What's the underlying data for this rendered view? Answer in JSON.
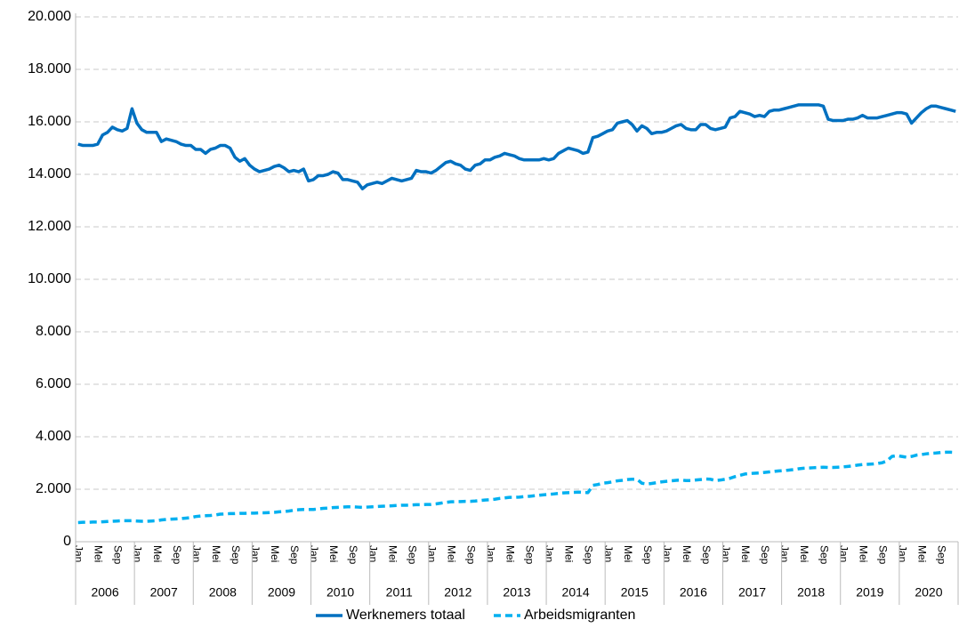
{
  "chart_data": {
    "type": "line",
    "categories": [
      "Jan",
      null,
      null,
      null,
      "Mei",
      null,
      null,
      null,
      "Sep",
      null,
      null,
      null,
      "Jan",
      null,
      null,
      null,
      "Mei",
      null,
      null,
      null,
      "Sep",
      null,
      null,
      null,
      "Jan",
      null,
      null,
      null,
      "Mei",
      null,
      null,
      null,
      "Sep",
      null,
      null,
      null,
      "Jan",
      null,
      null,
      null,
      "Mei",
      null,
      null,
      null,
      "Sep",
      null,
      null,
      null,
      "Jan",
      null,
      null,
      null,
      "Mei",
      null,
      null,
      null,
      "Sep",
      null,
      null,
      null,
      "Jan",
      null,
      null,
      null,
      "Mei",
      null,
      null,
      null,
      "Sep",
      null,
      null,
      null,
      "Jan",
      null,
      null,
      null,
      "Mei",
      null,
      null,
      null,
      "Sep",
      null,
      null,
      null,
      "Jan",
      null,
      null,
      null,
      "Mei",
      null,
      null,
      null,
      "Sep",
      null,
      null,
      null,
      "Jan",
      null,
      null,
      null,
      "Mei",
      null,
      null,
      null,
      "Sep",
      null,
      null,
      null,
      "Jan",
      null,
      null,
      null,
      "Mei",
      null,
      null,
      null,
      "Sep",
      null,
      null,
      null,
      "Jan",
      null,
      null,
      null,
      "Mei",
      null,
      null,
      null,
      "Sep",
      null,
      null,
      null,
      "Jan",
      null,
      null,
      null,
      "Mei",
      null,
      null,
      null,
      "Sep",
      null,
      null,
      null,
      "Jan",
      null,
      null,
      null,
      "Mei",
      null,
      null,
      null,
      "Sep",
      null,
      null,
      null,
      "Jan",
      null,
      null,
      null,
      "Mei",
      null,
      null,
      null,
      "Sep",
      null,
      null,
      null,
      "Jan",
      null,
      null,
      null,
      "Mei",
      null,
      null,
      null,
      "Sep",
      null,
      null,
      null
    ],
    "years": [
      "2006",
      "2007",
      "2008",
      "2009",
      "2010",
      "2011",
      "2012",
      "2013",
      "2014",
      "2015",
      "2016",
      "2017",
      "2018",
      "2019",
      "2020"
    ],
    "series": [
      {
        "name": "Werknemers totaal",
        "color": "#0070c0",
        "dash": false,
        "values": [
          15150,
          15100,
          15100,
          15100,
          15150,
          15500,
          15600,
          15800,
          15700,
          15650,
          15750,
          16500,
          15950,
          15700,
          15600,
          15600,
          15600,
          15250,
          15350,
          15300,
          15250,
          15150,
          15100,
          15100,
          14950,
          14950,
          14800,
          14950,
          15000,
          15100,
          15100,
          15000,
          14650,
          14500,
          14600,
          14350,
          14200,
          14100,
          14150,
          14200,
          14300,
          14350,
          14250,
          14100,
          14150,
          14100,
          14200,
          13750,
          13800,
          13950,
          13950,
          14000,
          14100,
          14050,
          13800,
          13800,
          13750,
          13700,
          13450,
          13600,
          13650,
          13700,
          13650,
          13750,
          13850,
          13800,
          13750,
          13800,
          13850,
          14150,
          14100,
          14100,
          14050,
          14150,
          14300,
          14450,
          14500,
          14400,
          14350,
          14200,
          14150,
          14350,
          14400,
          14550,
          14550,
          14650,
          14700,
          14800,
          14750,
          14700,
          14600,
          14550,
          14550,
          14550,
          14550,
          14600,
          14550,
          14600,
          14800,
          14900,
          15000,
          14950,
          14900,
          14800,
          14850,
          15400,
          15450,
          15550,
          15650,
          15700,
          15950,
          16000,
          16050,
          15900,
          15650,
          15850,
          15750,
          15550,
          15600,
          15600,
          15650,
          15750,
          15850,
          15900,
          15750,
          15700,
          15700,
          15900,
          15900,
          15750,
          15700,
          15750,
          15800,
          16150,
          16200,
          16400,
          16350,
          16300,
          16200,
          16250,
          16200,
          16400,
          16450,
          16450,
          16500,
          16550,
          16600,
          16650,
          16650,
          16650,
          16650,
          16650,
          16600,
          16100,
          16050,
          16050,
          16050,
          16100,
          16100,
          16150,
          16250,
          16150,
          16150,
          16150,
          16200,
          16250,
          16300,
          16350,
          16350,
          16300,
          15950,
          16150,
          16350,
          16500,
          16600,
          16600,
          16550,
          16500,
          16450,
          16400
        ]
      },
      {
        "name": "Arbeidsmigranten",
        "color": "#00b0f0",
        "dash": true,
        "values": [
          730,
          740,
          740,
          750,
          750,
          760,
          770,
          780,
          790,
          800,
          800,
          800,
          790,
          780,
          780,
          790,
          800,
          830,
          850,
          860,
          870,
          880,
          900,
          920,
          960,
          980,
          990,
          1000,
          1020,
          1050,
          1060,
          1070,
          1070,
          1080,
          1080,
          1090,
          1090,
          1100,
          1100,
          1110,
          1120,
          1140,
          1150,
          1170,
          1200,
          1220,
          1230,
          1230,
          1230,
          1250,
          1270,
          1280,
          1300,
          1310,
          1320,
          1330,
          1330,
          1320,
          1310,
          1320,
          1330,
          1340,
          1350,
          1360,
          1370,
          1380,
          1390,
          1390,
          1400,
          1410,
          1410,
          1420,
          1420,
          1440,
          1470,
          1500,
          1520,
          1530,
          1530,
          1540,
          1540,
          1550,
          1570,
          1590,
          1600,
          1620,
          1650,
          1670,
          1690,
          1690,
          1700,
          1720,
          1730,
          1750,
          1770,
          1790,
          1800,
          1820,
          1840,
          1860,
          1870,
          1880,
          1890,
          1880,
          1870,
          2150,
          2180,
          2230,
          2250,
          2280,
          2320,
          2340,
          2370,
          2380,
          2380,
          2230,
          2200,
          2220,
          2250,
          2280,
          2300,
          2320,
          2340,
          2350,
          2330,
          2330,
          2350,
          2370,
          2390,
          2380,
          2330,
          2350,
          2380,
          2420,
          2480,
          2530,
          2580,
          2600,
          2610,
          2620,
          2640,
          2660,
          2680,
          2700,
          2710,
          2730,
          2750,
          2780,
          2800,
          2810,
          2820,
          2830,
          2840,
          2830,
          2830,
          2840,
          2850,
          2870,
          2890,
          2920,
          2940,
          2950,
          2960,
          2980,
          3010,
          3080,
          3250,
          3280,
          3250,
          3220,
          3250,
          3300,
          3320,
          3350,
          3370,
          3380,
          3400,
          3410,
          3410,
          3400
        ]
      }
    ],
    "ylim": [
      0,
      20000
    ],
    "yticks": [
      0,
      {
        "value": 2000,
        "label": "2.000"
      },
      {
        "value": 4000,
        "label": "4.000"
      },
      {
        "value": 6000,
        "label": "6.000"
      },
      {
        "value": 8000,
        "label": "8.000"
      },
      {
        "value": 10000,
        "label": "10.000"
      },
      {
        "value": 12000,
        "label": "12.000"
      },
      {
        "value": 14000,
        "label": "14.000"
      },
      {
        "value": 16000,
        "label": "16.000"
      },
      {
        "value": 18000,
        "label": "18.000"
      },
      {
        "value": 20000,
        "label": "20.000"
      }
    ],
    "grid": true,
    "legend": "bottom"
  }
}
